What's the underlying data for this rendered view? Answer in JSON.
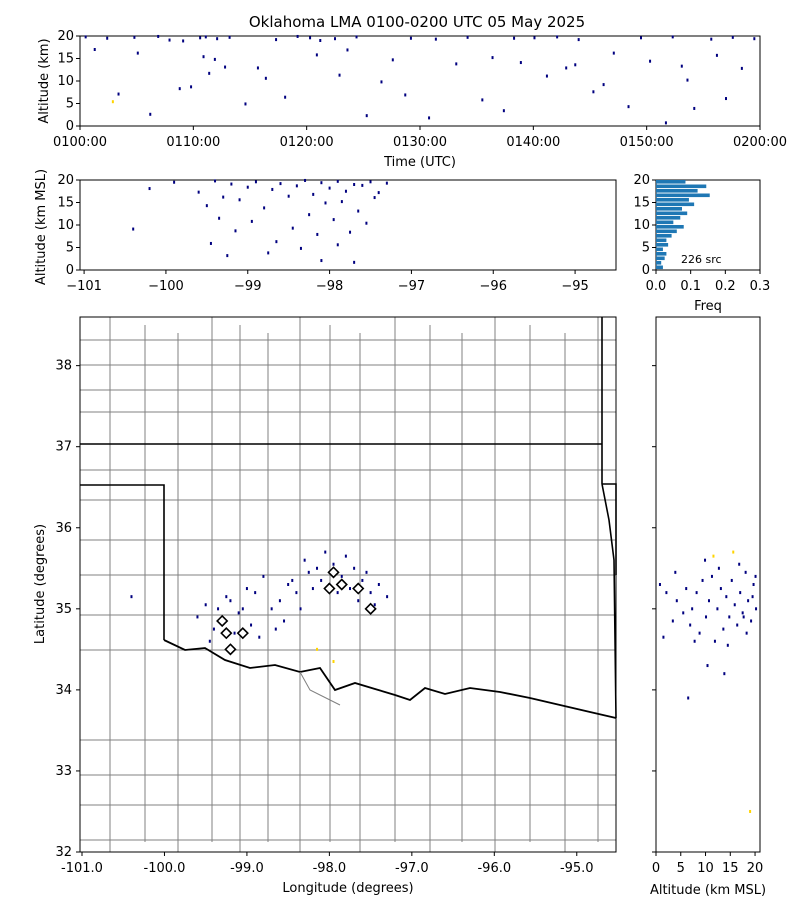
{
  "title": "Oklahoma LMA 0100-0200 UTC 05 May 2025",
  "colors": {
    "low": "#00007f",
    "mid": "#1f3fbf",
    "high": "#ffd400",
    "hist": "#1f77b4",
    "border": "#808080"
  },
  "panels": {
    "time_height": {
      "ylabel": "Altitude (km)",
      "xlabel": "Time (UTC)",
      "ylim": [
        0,
        20
      ],
      "yticks": [
        "0",
        "5",
        "10",
        "15",
        "20"
      ],
      "xticks": [
        "0100:00",
        "0110:00",
        "0120:00",
        "0130:00",
        "0140:00",
        "0150:00",
        "0200:00"
      ]
    },
    "lon_height": {
      "ylabel": "Altitude (km MSL)",
      "ylim": [
        0,
        20
      ],
      "yticks": [
        "0",
        "5",
        "10",
        "15",
        "20"
      ],
      "xticks": [
        "−101",
        "−100",
        "−99",
        "−98",
        "−97",
        "−96",
        "−95"
      ]
    },
    "histogram": {
      "xlabel": "Freq",
      "xticks": [
        "0.0",
        "0.1",
        "0.2",
        "0.3"
      ],
      "yticks": [
        "0",
        "5",
        "10",
        "15",
        "20"
      ],
      "annotation": "226 src"
    },
    "map": {
      "xlabel": "Longitude (degrees)",
      "ylabel": "Latitude (degrees)",
      "xticks": [
        "-101.0",
        "-100.0",
        "-99.0",
        "-98.0",
        "-97.0",
        "-96.0",
        "-95.0"
      ],
      "yticks": [
        "32",
        "33",
        "34",
        "35",
        "36",
        "37",
        "38"
      ]
    },
    "lat_height": {
      "xlabel": "Altitude (km MSL)",
      "xticks": [
        "0",
        "5",
        "10",
        "15",
        "20"
      ]
    }
  },
  "chart_data": [
    {
      "type": "scatter",
      "panel": "time_height",
      "x_minutes_after_0100": [
        0.5,
        2.4,
        4.8,
        6.9,
        7.9,
        9.1,
        10.6,
        11.1,
        12.1,
        13.2,
        17.3,
        19.2,
        20.3,
        21.2,
        22.5,
        24.4,
        29.2,
        31.4,
        34.2,
        38.3,
        40.1,
        42.1,
        44.0,
        49.5,
        52.3,
        55.7,
        57.6,
        59.5,
        1.3,
        5.1,
        10.9,
        11.9,
        12.8,
        15.7,
        20.9,
        23.6,
        27.6,
        33.2,
        36.4,
        38.9,
        42.9,
        43.7,
        47.1,
        50.3,
        53.1,
        56.2,
        58.4,
        3.4,
        8.8,
        18.1,
        26.6,
        35.5,
        45.3,
        54.2,
        14.6,
        9.8,
        25.3,
        30.8,
        37.4,
        46.2,
        51.7,
        57.0,
        22.9,
        11.4,
        16.4,
        28.7,
        41.2,
        48.4,
        53.6,
        6.2,
        2.9
      ],
      "y_km": [
        19.8,
        19.5,
        19.7,
        19.9,
        19.1,
        18.9,
        19.6,
        19.8,
        19.4,
        19.7,
        19.2,
        19.9,
        19.6,
        19.0,
        19.4,
        19.8,
        19.5,
        19.3,
        19.7,
        19.5,
        19.6,
        19.8,
        19.2,
        19.6,
        19.8,
        19.3,
        19.7,
        19.4,
        17.0,
        16.2,
        15.4,
        14.8,
        13.1,
        12.9,
        15.8,
        16.9,
        14.7,
        13.8,
        15.2,
        14.1,
        12.9,
        13.6,
        16.2,
        14.4,
        13.3,
        15.7,
        12.8,
        7.1,
        8.3,
        6.4,
        9.8,
        5.8,
        7.6,
        3.9,
        4.9,
        8.7,
        2.3,
        1.8,
        3.4,
        9.2,
        0.7,
        6.1,
        11.3,
        11.7,
        10.6,
        6.9,
        11.1,
        4.3,
        10.2,
        2.6,
        5.4
      ]
    },
    {
      "type": "scatter",
      "panel": "lon_height",
      "x_lon": [
        -100.2,
        -99.9,
        -99.6,
        -99.4,
        -99.3,
        -99.2,
        -99.0,
        -98.9,
        -98.7,
        -98.6,
        -98.4,
        -98.3,
        -98.2,
        -98.1,
        -98.0,
        -97.9,
        -97.8,
        -97.7,
        -97.6,
        -97.5,
        -97.4,
        -97.3,
        -99.5,
        -99.1,
        -98.8,
        -98.5,
        -98.05,
        -97.85,
        -97.65,
        -97.45,
        -99.35,
        -98.95,
        -98.25,
        -97.95,
        -97.55,
        -99.15,
        -98.45,
        -98.15,
        -97.75,
        -99.45,
        -98.65,
        -98.35,
        -97.9,
        -100.4,
        -99.25,
        -98.75,
        -98.1,
        -97.7
      ],
      "y_km": [
        18.1,
        19.5,
        17.3,
        19.8,
        16.2,
        19.1,
        18.4,
        19.6,
        17.9,
        19.2,
        18.7,
        19.9,
        16.8,
        19.4,
        18.2,
        19.7,
        17.5,
        19.0,
        18.8,
        19.6,
        17.2,
        19.3,
        14.3,
        15.6,
        13.8,
        16.4,
        14.9,
        15.2,
        13.1,
        16.1,
        11.5,
        10.8,
        12.3,
        11.2,
        10.4,
        8.7,
        9.3,
        7.9,
        8.4,
        5.9,
        6.3,
        4.8,
        5.6,
        9.1,
        3.2,
        3.8,
        2.1,
        1.7
      ]
    },
    {
      "type": "bar",
      "panel": "histogram",
      "orientation": "horizontal",
      "altitude_bins_km": [
        0.5,
        1.5,
        2.5,
        3.5,
        4.5,
        5.5,
        6.5,
        7.5,
        8.5,
        9.5,
        10.5,
        11.5,
        12.5,
        13.5,
        14.5,
        15.5,
        16.5,
        17.5,
        18.5,
        19.5
      ],
      "frequency": [
        0.02,
        0.015,
        0.025,
        0.03,
        0.02,
        0.035,
        0.03,
        0.045,
        0.06,
        0.08,
        0.05,
        0.07,
        0.09,
        0.075,
        0.11,
        0.095,
        0.155,
        0.12,
        0.145,
        0.085
      ],
      "sources": 226
    },
    {
      "type": "scatter",
      "panel": "map",
      "xlim": [
        -101.0,
        -94.5
      ],
      "ylim": [
        32.0,
        38.6
      ],
      "lon": [
        -100.4,
        -99.6,
        -99.5,
        -99.4,
        -99.35,
        -99.3,
        -99.2,
        -99.15,
        -99.1,
        -99.0,
        -98.95,
        -98.9,
        -98.85,
        -98.8,
        -98.7,
        -98.6,
        -98.5,
        -98.4,
        -98.3,
        -98.25,
        -98.2,
        -98.15,
        -98.1,
        -98.05,
        -98.0,
        -97.95,
        -97.9,
        -97.85,
        -97.8,
        -97.75,
        -97.7,
        -97.65,
        -97.6,
        -97.5,
        -97.45,
        -97.4,
        -97.3,
        -99.45,
        -99.25,
        -98.65,
        -98.35,
        -97.55,
        -98.45,
        -99.05,
        -98.55,
        -97.95,
        -98.15
      ],
      "lat": [
        35.15,
        34.9,
        35.05,
        34.75,
        35.0,
        34.85,
        35.1,
        34.7,
        34.95,
        35.25,
        34.8,
        35.2,
        34.65,
        35.4,
        35.0,
        35.1,
        35.3,
        35.2,
        35.6,
        35.45,
        35.25,
        35.5,
        35.35,
        35.7,
        35.3,
        35.55,
        35.2,
        35.4,
        35.65,
        35.25,
        35.5,
        35.1,
        35.35,
        35.2,
        35.05,
        35.3,
        35.15,
        34.6,
        35.15,
        34.75,
        35.0,
        35.45,
        35.35,
        35.0,
        34.85,
        34.35,
        34.5
      ]
    },
    {
      "type": "scatter",
      "panel": "map",
      "series_name": "stations",
      "lon": [
        -99.3,
        -99.25,
        -99.2,
        -99.05,
        -97.95,
        -98.0,
        -97.85,
        -97.65,
        -97.5
      ],
      "lat": [
        34.85,
        34.7,
        34.5,
        34.7,
        35.45,
        35.25,
        35.3,
        35.25,
        35.0
      ]
    },
    {
      "type": "scatter",
      "panel": "lat_height",
      "x_km": [
        0.8,
        2.1,
        3.4,
        4.2,
        5.5,
        6.1,
        6.9,
        7.3,
        8.2,
        8.8,
        9.4,
        10.1,
        10.7,
        11.3,
        11.9,
        12.4,
        13.1,
        13.6,
        14.2,
        14.8,
        15.3,
        15.9,
        16.4,
        17.0,
        17.5,
        18.1,
        18.6,
        19.2,
        19.7,
        20.2,
        1.5,
        3.9,
        7.8,
        9.9,
        12.7,
        14.5,
        16.8,
        18.3,
        19.5,
        20.1,
        10.4,
        13.8,
        17.7,
        6.5,
        15.6,
        19.0,
        11.6
      ],
      "lat": [
        35.3,
        35.2,
        34.85,
        35.1,
        34.95,
        35.25,
        34.8,
        35.0,
        35.2,
        34.7,
        35.35,
        34.9,
        35.1,
        35.4,
        34.6,
        35.0,
        35.25,
        34.75,
        35.15,
        34.9,
        35.35,
        35.05,
        34.8,
        35.2,
        34.95,
        35.45,
        35.1,
        34.85,
        35.3,
        35.0,
        34.65,
        35.45,
        34.6,
        35.6,
        35.5,
        34.55,
        35.55,
        34.7,
        35.15,
        35.4,
        34.3,
        34.2,
        34.9,
        33.9,
        35.7,
        32.5,
        35.65
      ]
    }
  ]
}
